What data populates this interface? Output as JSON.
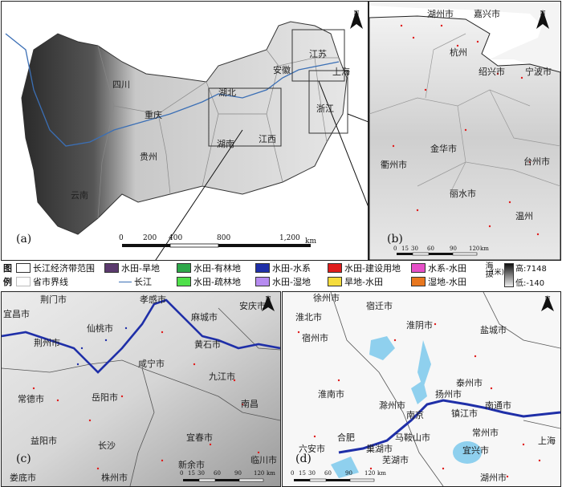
{
  "panel_a": {
    "label": "(a)",
    "provinces": [
      "四川",
      "重庆",
      "贵州",
      "云南",
      "湖北",
      "湖南",
      "江西",
      "安徽",
      "江苏",
      "上海",
      "浙江"
    ],
    "scale": {
      "ticks": [
        "0",
        "200",
        "400",
        "800",
        "1,200"
      ],
      "unit": "km"
    },
    "north": "N"
  },
  "panel_b": {
    "label": "(b)",
    "cities": [
      "湖州市",
      "嘉兴市",
      "杭州",
      "绍兴市",
      "宁波市",
      "金华市",
      "衢州市",
      "丽水市",
      "台州市",
      "温州"
    ],
    "scale": {
      "ticks": [
        "0",
        "15",
        "30",
        "60",
        "90",
        "120"
      ],
      "unit": "km"
    },
    "north": "N"
  },
  "panel_c": {
    "label": "(c)",
    "cities": [
      "荆门市",
      "孝感市",
      "安庆市",
      "宜昌市",
      "荆州市",
      "仙桃市",
      "麻城市",
      "黄石市",
      "咸宁市",
      "九江市",
      "常德市",
      "岳阳市",
      "南昌",
      "益阳市",
      "长沙",
      "宜春市",
      "临川市",
      "新余市",
      "娄底市",
      "株州市"
    ],
    "scale": {
      "ticks": [
        "0",
        "15",
        "30",
        "60",
        "90",
        "120"
      ],
      "unit": "km"
    },
    "north": "N"
  },
  "panel_d": {
    "label": "(d)",
    "cities": [
      "徐州市",
      "宿迁市",
      "淮北市",
      "淮阴市",
      "盐城市",
      "宿州市",
      "泰州市",
      "淮南市",
      "扬州市",
      "南通市",
      "滁州市",
      "南京",
      "镇江市",
      "合肥",
      "巢湖市",
      "马鞍山市",
      "常州市",
      "六安市",
      "芜湖市",
      "宜兴市",
      "上海",
      "湖州市"
    ],
    "scale": {
      "ticks": [
        "0",
        "15",
        "30",
        "60",
        "90",
        "120"
      ],
      "unit": "km"
    },
    "north": "N"
  },
  "legend": {
    "title_1": "图",
    "title_2": "例",
    "items": [
      {
        "label": "长江经济带范围",
        "color": "#ffffff",
        "kind": "box"
      },
      {
        "label": "省市界线",
        "color": "#bbbbbb",
        "kind": "thin"
      },
      {
        "label": "长江",
        "color": "#3b6fb5",
        "kind": "line"
      },
      {
        "label": "水田-旱地",
        "color": "#5b3a6e",
        "kind": "box"
      },
      {
        "label": "水田-有林地",
        "color": "#2ea84a",
        "kind": "box"
      },
      {
        "label": "水田-疏林地",
        "color": "#4fe04a",
        "kind": "box"
      },
      {
        "label": "水田-水系",
        "color": "#1f2fa8",
        "kind": "box"
      },
      {
        "label": "水田-湿地",
        "color": "#b68bf0",
        "kind": "box"
      },
      {
        "label": "水田-建设用地",
        "color": "#e01c1c",
        "kind": "box"
      },
      {
        "label": "旱地-水田",
        "color": "#f5dc3c",
        "kind": "box"
      },
      {
        "label": "水系-水田",
        "color": "#e64fc8",
        "kind": "box"
      },
      {
        "label": "湿地-水田",
        "color": "#e8771f",
        "kind": "box"
      }
    ],
    "elevation_title": "海拔",
    "elevation_unit": "(米)",
    "elevation_high": "高:7148",
    "elevation_low": "低:-140"
  }
}
